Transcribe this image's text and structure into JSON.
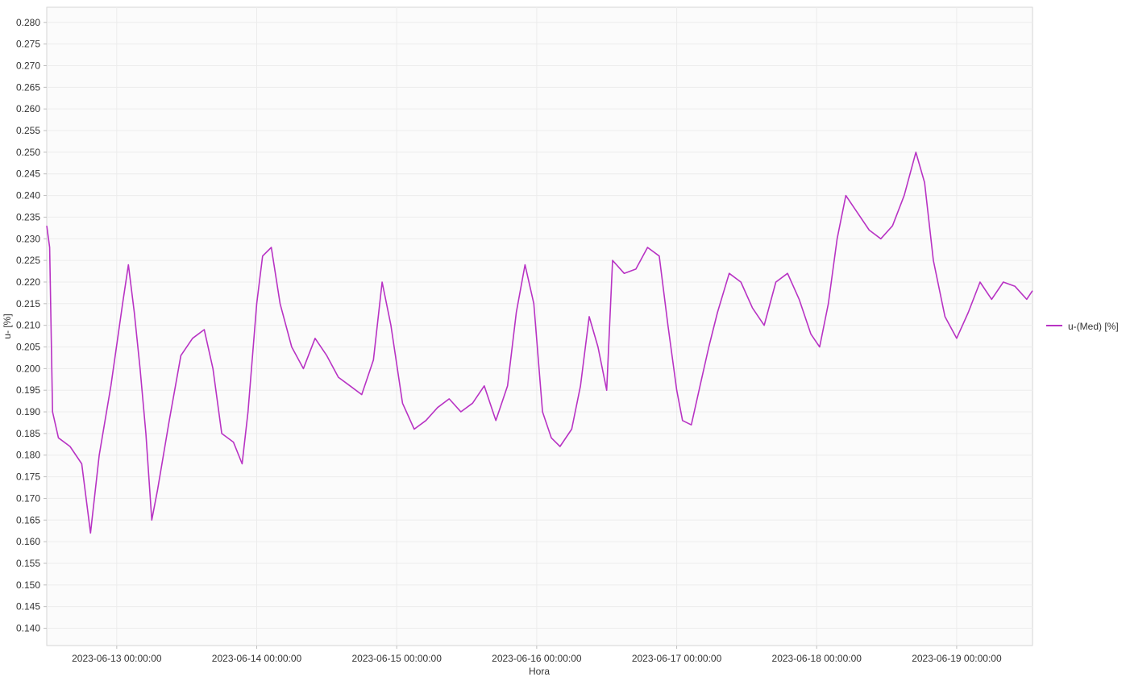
{
  "chart_data": {
    "type": "line",
    "title": "",
    "xlabel": "Hora",
    "ylabel": "u- [%]",
    "ylim": [
      0.136,
      0.2835
    ],
    "xlim": [
      "2023-06-12 12:00:00",
      "2023-06-19 13:00:00"
    ],
    "y_ticks": [
      "0.140",
      "0.145",
      "0.150",
      "0.155",
      "0.160",
      "0.165",
      "0.170",
      "0.175",
      "0.180",
      "0.185",
      "0.190",
      "0.195",
      "0.200",
      "0.205",
      "0.210",
      "0.215",
      "0.220",
      "0.225",
      "0.230",
      "0.235",
      "0.240",
      "0.245",
      "0.250",
      "0.255",
      "0.260",
      "0.265",
      "0.270",
      "0.275",
      "0.280"
    ],
    "x_ticks": [
      "2023-06-13 00:00:00",
      "2023-06-14 00:00:00",
      "2023-06-15 00:00:00",
      "2023-06-16 00:00:00",
      "2023-06-17 00:00:00",
      "2023-06-18 00:00:00",
      "2023-06-19 00:00:00"
    ],
    "grid": true,
    "legend_position": "right",
    "series": [
      {
        "name": "u-(Med) [%]",
        "color": "#b833c4",
        "points": [
          [
            "2023-06-12 12:00",
            0.233
          ],
          [
            "2023-06-12 12:30",
            0.228
          ],
          [
            "2023-06-12 13:00",
            0.19
          ],
          [
            "2023-06-12 14:00",
            0.184
          ],
          [
            "2023-06-12 16:00",
            0.182
          ],
          [
            "2023-06-12 18:00",
            0.178
          ],
          [
            "2023-06-12 19:30",
            0.162
          ],
          [
            "2023-06-12 21:00",
            0.18
          ],
          [
            "2023-06-12 23:00",
            0.196
          ],
          [
            "2023-06-13 01:00",
            0.215
          ],
          [
            "2023-06-13 02:00",
            0.224
          ],
          [
            "2023-06-13 03:00",
            0.213
          ],
          [
            "2023-06-13 04:00",
            0.2
          ],
          [
            "2023-06-13 05:00",
            0.185
          ],
          [
            "2023-06-13 06:00",
            0.165
          ],
          [
            "2023-06-13 07:00",
            0.172
          ],
          [
            "2023-06-13 09:00",
            0.188
          ],
          [
            "2023-06-13 11:00",
            0.203
          ],
          [
            "2023-06-13 13:00",
            0.207
          ],
          [
            "2023-06-13 15:00",
            0.209
          ],
          [
            "2023-06-13 16:30",
            0.2
          ],
          [
            "2023-06-13 18:00",
            0.185
          ],
          [
            "2023-06-13 20:00",
            0.183
          ],
          [
            "2023-06-13 21:30",
            0.178
          ],
          [
            "2023-06-13 22:30",
            0.19
          ],
          [
            "2023-06-14 00:00",
            0.215
          ],
          [
            "2023-06-14 01:00",
            0.226
          ],
          [
            "2023-06-14 02:30",
            0.228
          ],
          [
            "2023-06-14 04:00",
            0.215
          ],
          [
            "2023-06-14 06:00",
            0.205
          ],
          [
            "2023-06-14 08:00",
            0.2
          ],
          [
            "2023-06-14 10:00",
            0.207
          ],
          [
            "2023-06-14 12:00",
            0.203
          ],
          [
            "2023-06-14 14:00",
            0.198
          ],
          [
            "2023-06-14 16:00",
            0.196
          ],
          [
            "2023-06-14 18:00",
            0.194
          ],
          [
            "2023-06-14 20:00",
            0.202
          ],
          [
            "2023-06-14 21:30",
            0.22
          ],
          [
            "2023-06-14 23:00",
            0.21
          ],
          [
            "2023-06-15 01:00",
            0.192
          ],
          [
            "2023-06-15 03:00",
            0.186
          ],
          [
            "2023-06-15 05:00",
            0.188
          ],
          [
            "2023-06-15 07:00",
            0.191
          ],
          [
            "2023-06-15 09:00",
            0.193
          ],
          [
            "2023-06-15 11:00",
            0.19
          ],
          [
            "2023-06-15 13:00",
            0.192
          ],
          [
            "2023-06-15 15:00",
            0.196
          ],
          [
            "2023-06-15 17:00",
            0.188
          ],
          [
            "2023-06-15 19:00",
            0.196
          ],
          [
            "2023-06-15 20:30",
            0.213
          ],
          [
            "2023-06-15 22:00",
            0.224
          ],
          [
            "2023-06-15 23:30",
            0.215
          ],
          [
            "2023-06-16 01:00",
            0.19
          ],
          [
            "2023-06-16 02:30",
            0.184
          ],
          [
            "2023-06-16 04:00",
            0.182
          ],
          [
            "2023-06-16 06:00",
            0.186
          ],
          [
            "2023-06-16 07:30",
            0.196
          ],
          [
            "2023-06-16 09:00",
            0.212
          ],
          [
            "2023-06-16 10:30",
            0.205
          ],
          [
            "2023-06-16 12:00",
            0.195
          ],
          [
            "2023-06-16 13:00",
            0.225
          ],
          [
            "2023-06-16 15:00",
            0.222
          ],
          [
            "2023-06-16 17:00",
            0.223
          ],
          [
            "2023-06-16 19:00",
            0.228
          ],
          [
            "2023-06-16 21:00",
            0.226
          ],
          [
            "2023-06-16 22:30",
            0.21
          ],
          [
            "2023-06-17 00:00",
            0.195
          ],
          [
            "2023-06-17 01:00",
            0.188
          ],
          [
            "2023-06-17 02:30",
            0.187
          ],
          [
            "2023-06-17 04:00",
            0.196
          ],
          [
            "2023-06-17 05:30",
            0.205
          ],
          [
            "2023-06-17 07:00",
            0.213
          ],
          [
            "2023-06-17 09:00",
            0.222
          ],
          [
            "2023-06-17 11:00",
            0.22
          ],
          [
            "2023-06-17 13:00",
            0.214
          ],
          [
            "2023-06-17 15:00",
            0.21
          ],
          [
            "2023-06-17 17:00",
            0.22
          ],
          [
            "2023-06-17 19:00",
            0.222
          ],
          [
            "2023-06-17 21:00",
            0.216
          ],
          [
            "2023-06-17 23:00",
            0.208
          ],
          [
            "2023-06-18 00:30",
            0.205
          ],
          [
            "2023-06-18 02:00",
            0.215
          ],
          [
            "2023-06-18 03:30",
            0.23
          ],
          [
            "2023-06-18 05:00",
            0.24
          ],
          [
            "2023-06-18 07:00",
            0.236
          ],
          [
            "2023-06-18 09:00",
            0.232
          ],
          [
            "2023-06-18 11:00",
            0.23
          ],
          [
            "2023-06-18 13:00",
            0.233
          ],
          [
            "2023-06-18 15:00",
            0.24
          ],
          [
            "2023-06-18 17:00",
            0.25
          ],
          [
            "2023-06-18 18:30",
            0.243
          ],
          [
            "2023-06-18 20:00",
            0.225
          ],
          [
            "2023-06-18 22:00",
            0.212
          ],
          [
            "2023-06-19 00:00",
            0.207
          ],
          [
            "2023-06-19 02:00",
            0.213
          ],
          [
            "2023-06-19 04:00",
            0.22
          ],
          [
            "2023-06-19 06:00",
            0.216
          ],
          [
            "2023-06-19 08:00",
            0.22
          ],
          [
            "2023-06-19 10:00",
            0.219
          ],
          [
            "2023-06-19 12:00",
            0.216
          ],
          [
            "2023-06-19 13:00",
            0.218
          ]
        ]
      }
    ]
  }
}
